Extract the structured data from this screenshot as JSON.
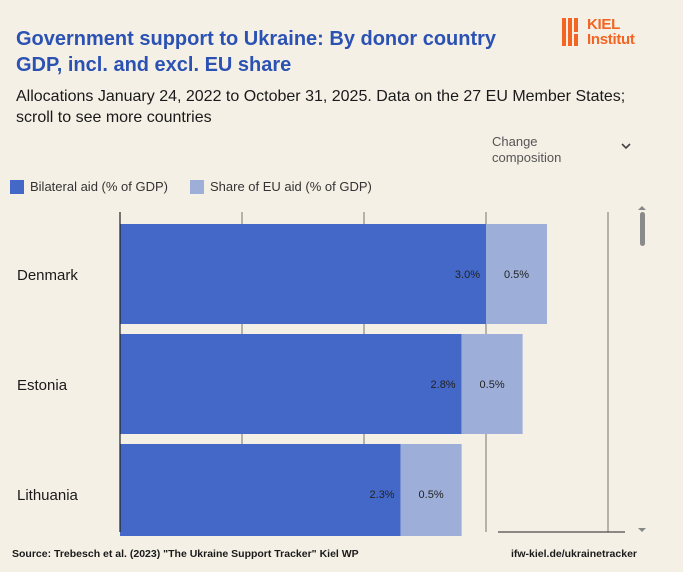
{
  "header": {
    "title": "Government support to Ukraine: By donor country GDP, incl. and excl. EU share",
    "subtitle": "Allocations January 24, 2022 to October 31, 2025. Data on the 27 EU Member States; scroll to see more countries"
  },
  "logo": {
    "line1": "KIEL",
    "line2": "Institut",
    "color": "#f26522",
    "icon": "kiel-logo-icon"
  },
  "control": {
    "label": "Change composition",
    "icon": "chevron-down-icon"
  },
  "legend": [
    {
      "label": "Bilateral aid (% of GDP)",
      "color": "#4468c8"
    },
    {
      "label": "Share of EU aid (% of GDP)",
      "color": "#9daed8"
    }
  ],
  "chart_data": {
    "type": "bar",
    "orientation": "horizontal",
    "stacked": true,
    "categories": [
      "Denmark",
      "Estonia",
      "Lithuania"
    ],
    "series": [
      {
        "name": "Bilateral aid (% of GDP)",
        "values": [
          3.0,
          2.8,
          2.3
        ],
        "labels": [
          "3.0%",
          "2.8%",
          "2.3%"
        ],
        "color": "#4468c8"
      },
      {
        "name": "Share of EU aid (% of GDP)",
        "values": [
          0.5,
          0.5,
          0.5
        ],
        "labels": [
          "0.5%",
          "0.5%",
          "0.5%"
        ],
        "color": "#9daed8"
      }
    ],
    "xlim": [
      0,
      4
    ],
    "grid": true,
    "legend_position": "top-left"
  },
  "footer": {
    "source": "Source: Trebesch et al. (2023) \"The Ukraine Support Tracker\" Kiel WP",
    "link": "ifw-kiel.de/ukrainetracker"
  }
}
